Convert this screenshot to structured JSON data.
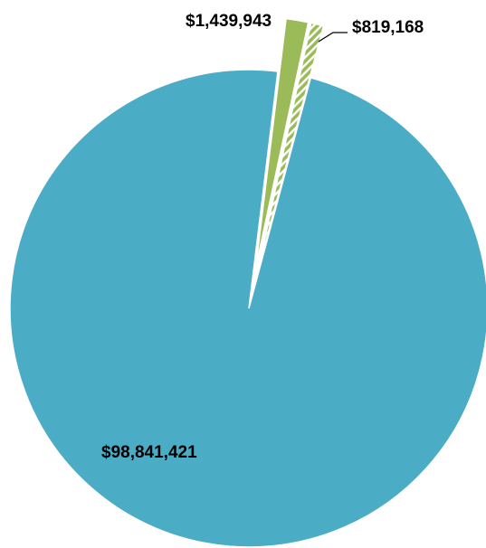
{
  "chart_data": {
    "type": "pie",
    "slices": [
      {
        "label": "$98,841,421",
        "value": 98841421,
        "color": "#4BACC6",
        "pattern": "solid"
      },
      {
        "label": "$1,439,943",
        "value": 1439943,
        "color": "#9BBB59",
        "pattern": "solid"
      },
      {
        "label": "$819,168",
        "value": 819168,
        "color": "#9BBB59",
        "pattern": "diagonal-stripes"
      }
    ],
    "legend": "none"
  }
}
